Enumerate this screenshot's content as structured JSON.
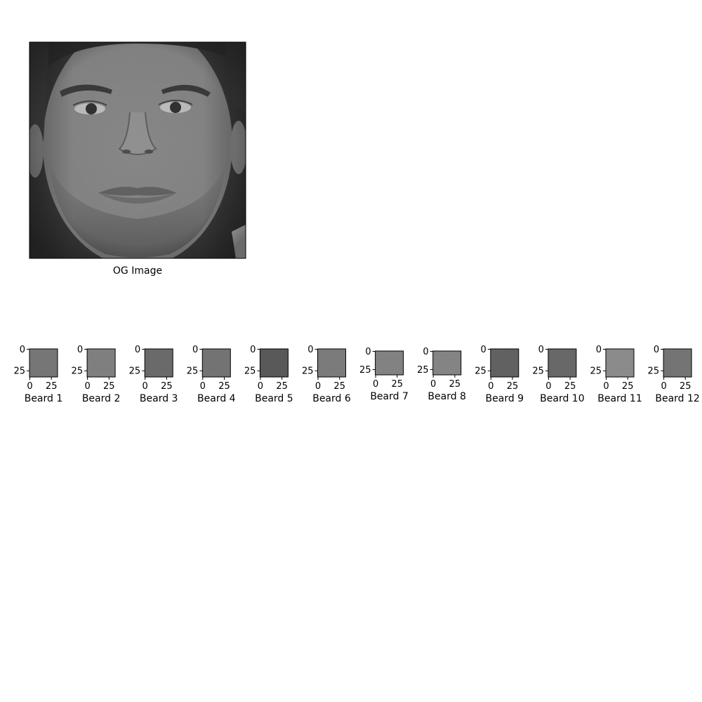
{
  "main_image": {
    "label": "OG Image",
    "tone": "#7c7c7c"
  },
  "patches": [
    {
      "label": "Beard 1",
      "x_ticks": [
        "0",
        "25"
      ],
      "y_ticks": [
        "0",
        "25"
      ],
      "tone": "#747474"
    },
    {
      "label": "Beard 2",
      "x_ticks": [
        "0",
        "25"
      ],
      "y_ticks": [
        "0",
        "25"
      ],
      "tone": "#858585"
    },
    {
      "label": "Beard 3",
      "x_ticks": [
        "0",
        "25"
      ],
      "y_ticks": [
        "0",
        "25"
      ],
      "tone": "#5e5e5e"
    },
    {
      "label": "Beard 4",
      "x_ticks": [
        "0",
        "25"
      ],
      "y_ticks": [
        "0",
        "25"
      ],
      "tone": "#6f6f6f"
    },
    {
      "label": "Beard 5",
      "x_ticks": [
        "0",
        "25"
      ],
      "y_ticks": [
        "0",
        "25"
      ],
      "tone": "#3f3f3f"
    },
    {
      "label": "Beard 6",
      "x_ticks": [
        "0",
        "25"
      ],
      "y_ticks": [
        "0",
        "25"
      ],
      "tone": "#7d7d7d"
    },
    {
      "label": "Beard 7",
      "x_ticks": [
        "0",
        "25"
      ],
      "y_ticks": [
        "0",
        "25"
      ],
      "tone": "#8a8a8a"
    },
    {
      "label": "Beard 8",
      "x_ticks": [
        "0",
        "25"
      ],
      "y_ticks": [
        "0",
        "25"
      ],
      "tone": "#8e8e8e"
    },
    {
      "label": "Beard 9",
      "x_ticks": [
        "0",
        "25"
      ],
      "y_ticks": [
        "0",
        "25"
      ],
      "tone": "#4e4e4e"
    },
    {
      "label": "Beard 10",
      "x_ticks": [
        "0",
        "25"
      ],
      "y_ticks": [
        "0",
        "25"
      ],
      "tone": "#5a5a5a"
    },
    {
      "label": "Beard 11",
      "x_ticks": [
        "0",
        "25"
      ],
      "y_ticks": [
        "0",
        "25"
      ],
      "tone": "#9a9a9a"
    },
    {
      "label": "Beard 12",
      "x_ticks": [
        "0",
        "25"
      ],
      "y_ticks": [
        "0",
        "25"
      ],
      "tone": "#707070"
    }
  ]
}
